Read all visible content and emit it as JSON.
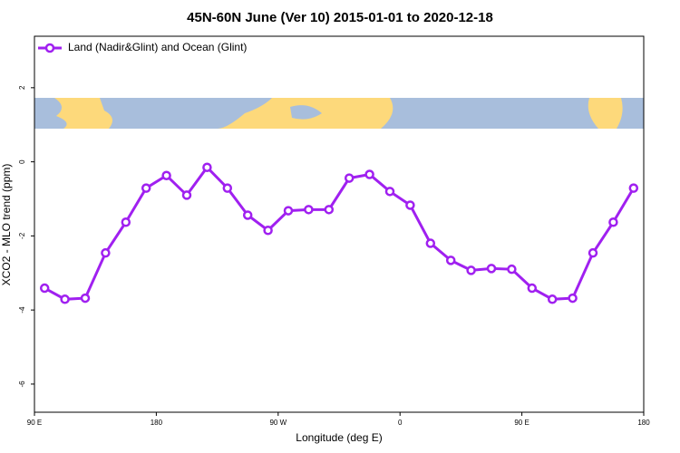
{
  "chart_data": {
    "type": "line",
    "title": "45N-60N June (Ver 10)   2015-01-01 to 2020-12-18",
    "xlabel": "Longitude (deg E)",
    "ylabel": "XCO2 - MLO trend (ppm)",
    "x": [
      97.5,
      112.5,
      127.5,
      142.5,
      157.5,
      172.5,
      187.5,
      202.5,
      217.5,
      232.5,
      247.5,
      262.5,
      277.5,
      292.5,
      307.5,
      322.5,
      337.5,
      352.5,
      367.5,
      382.5,
      397.5,
      412.5,
      427.5,
      442.5,
      457.5,
      472.5,
      487.5,
      502.5,
      517.5,
      532.5
    ],
    "series": [
      {
        "name": "Land (Nadir&Glint) and Ocean (Glint)",
        "color": "#a020f0",
        "values": [
          -3.41,
          -3.71,
          -3.68,
          -2.46,
          -1.63,
          -0.71,
          -0.37,
          -0.9,
          -0.15,
          -0.71,
          -1.44,
          -1.85,
          -1.32,
          -1.29,
          -1.29,
          -0.44,
          -0.34,
          -0.8,
          -1.17,
          -2.2,
          -2.66,
          -2.93,
          -2.88,
          -2.9,
          -3.41,
          -3.71,
          -3.68,
          -2.46,
          -1.63,
          -0.71
        ]
      }
    ],
    "xlim": [
      90,
      540
    ],
    "xticks": [
      {
        "value": 90,
        "label": "90 E"
      },
      180,
      {
        "value": 270,
        "label": "90 W"
      },
      {
        "value": 360,
        "label": "0"
      },
      {
        "value": 450,
        "label": "90 E"
      },
      {
        "value": 540,
        "label": "180"
      }
    ],
    "ylim": [
      -6.76,
      3.39
    ],
    "yticks": [
      -6,
      -4,
      -2,
      0,
      2
    ],
    "legend": "top-left"
  }
}
